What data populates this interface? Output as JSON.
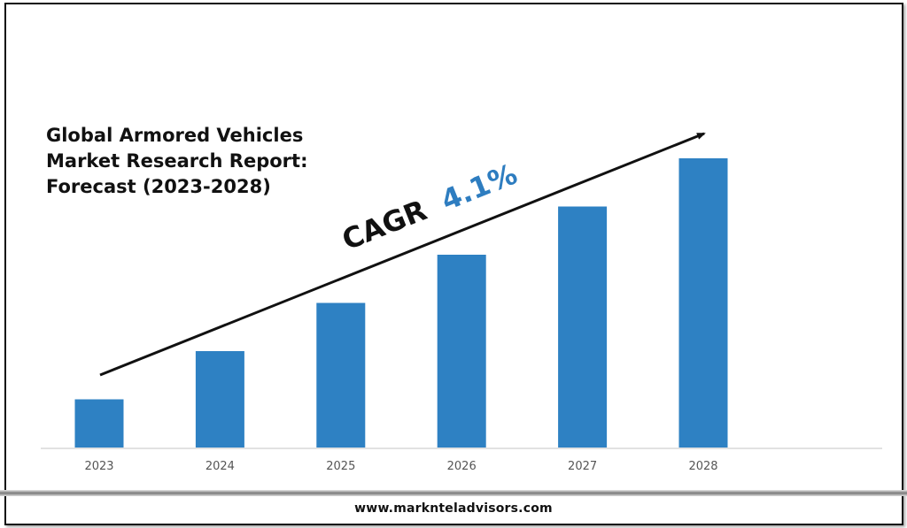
{
  "title_lines": [
    "Global Armored Vehicles",
    "Market Research Report:",
    "Forecast (2023-2028)"
  ],
  "cagr": {
    "label": "CAGR",
    "value": "4.1%",
    "value_color": "#2e7dc0",
    "label_color": "#111111"
  },
  "footer": {
    "url": "www.marknteladvisors.com"
  },
  "chart_data": {
    "type": "bar",
    "title": "Global Armored Vehicles Market Research Report: Forecast (2023-2028)",
    "categories": [
      "2023",
      "2024",
      "2025",
      "2026",
      "2027",
      "2028"
    ],
    "values": [
      1,
      2,
      3,
      4,
      5,
      6
    ],
    "value_units": "relative (no y-axis shown)",
    "ylim": [
      0,
      6.2
    ],
    "xlabel": "",
    "ylabel": "",
    "grid": false,
    "legend": "none",
    "bar_color": "#2e81c3",
    "annotation": "CAGR 4.1% (upward trend arrow)"
  }
}
